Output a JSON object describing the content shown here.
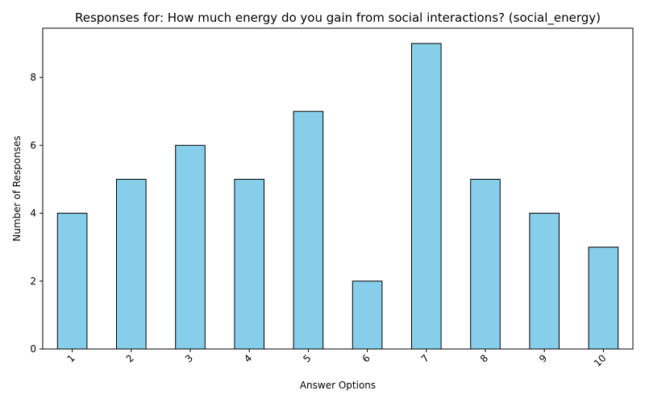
{
  "chart_data": {
    "type": "bar",
    "title": "Responses for: How much energy do you gain from social interactions? (social_energy)",
    "xlabel": "Answer Options",
    "ylabel": "Number of Responses",
    "categories": [
      "1",
      "2",
      "3",
      "4",
      "5",
      "6",
      "7",
      "8",
      "9",
      "10"
    ],
    "values": [
      4,
      5,
      6,
      5,
      7,
      2,
      9,
      5,
      4,
      3
    ],
    "ylim": [
      0,
      9.45
    ],
    "yticks": [
      0,
      2,
      4,
      6,
      8
    ],
    "grid": false,
    "bar_color": "#87ceeb",
    "edge_color": "#000000",
    "xtick_rotation": 45
  }
}
